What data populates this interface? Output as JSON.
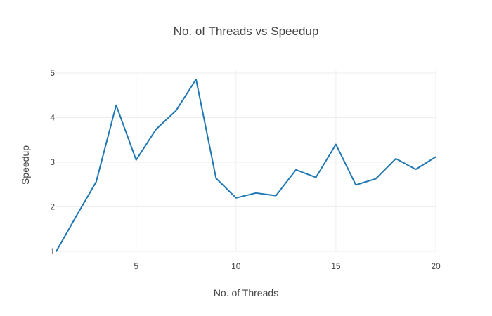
{
  "chart_data": {
    "type": "line",
    "title": "No. of Threads vs Speedup",
    "xlabel": "No. of Threads",
    "ylabel": "Speedup",
    "x": [
      1,
      2,
      3,
      4,
      5,
      6,
      7,
      8,
      9,
      10,
      11,
      12,
      13,
      14,
      15,
      16,
      17,
      18,
      19,
      20
    ],
    "series": [
      {
        "values": [
          1.0,
          1.79,
          2.56,
          4.28,
          3.05,
          3.74,
          4.16,
          4.86,
          2.64,
          2.2,
          2.31,
          2.25,
          2.83,
          2.66,
          3.4,
          2.49,
          2.63,
          3.08,
          2.84,
          3.12
        ],
        "color": "#1f77b4"
      }
    ],
    "xlim": [
      1,
      20
    ],
    "ylim": [
      1,
      5
    ],
    "xticks": [
      5,
      10,
      15,
      20
    ],
    "yticks": [
      1,
      2,
      3,
      4,
      5
    ],
    "grid": true,
    "legend": "none"
  }
}
